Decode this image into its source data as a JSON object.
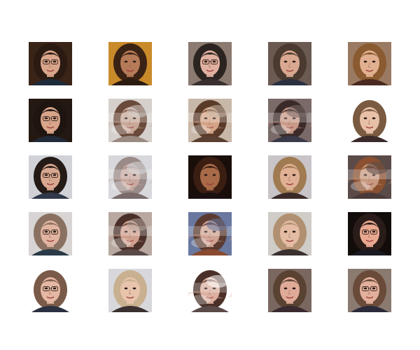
{
  "figure": {
    "background": "#ffffff",
    "rows": 5,
    "cols": 5
  },
  "tiles": [
    {
      "bg": "#3a2418",
      "hair": "#2a1a12",
      "skin": "#d9a58a",
      "glasses": true,
      "shirt": "#1d2b3a",
      "distorted": false
    },
    {
      "bg": "#c98a2a",
      "hair": "#3a2214",
      "skin": "#b57a58",
      "glasses": false,
      "shirt": "#2a1a10",
      "distorted": false
    },
    {
      "bg": "#8a7a70",
      "hair": "#2b2420",
      "skin": "#e0b0a0",
      "glasses": true,
      "shirt": "#3a3030",
      "distorted": false
    },
    {
      "bg": "#6a5a52",
      "hair": "#4a3a30",
      "skin": "#d8a890",
      "glasses": false,
      "shirt": "#2a3040",
      "distorted": false
    },
    {
      "bg": "#9a7a62",
      "hair": "#8a5a30",
      "skin": "#e0b090",
      "glasses": false,
      "shirt": "#4a2a20",
      "distorted": false
    },
    {
      "bg": "#241812",
      "hair": "#1e1410",
      "skin": "#d8a48a",
      "glasses": true,
      "shirt": "#202a38",
      "distorted": false
    },
    {
      "bg": "#d6d0cc",
      "hair": "#6a4a3a",
      "skin": "#c9a898",
      "glasses": false,
      "shirt": "#9a8a80",
      "distorted": true
    },
    {
      "bg": "#c8b8a8",
      "hair": "#5a3a28",
      "skin": "#d4a488",
      "glasses": false,
      "shirt": "#5a4030",
      "distorted": true
    },
    {
      "bg": "#7a6a68",
      "hair": "#3a2a28",
      "skin": "#c89a88",
      "glasses": false,
      "shirt": "#3a3a48",
      "distorted": true
    },
    {
      "bg": "#ffffff",
      "hair": "#7a5a40",
      "skin": "#e8c0a8",
      "glasses": false,
      "shirt": "#3a2a2a",
      "distorted": false
    },
    {
      "bg": "#d0d2d8",
      "hair": "#241a16",
      "skin": "#d8a890",
      "glasses": true,
      "shirt": "#30384a",
      "distorted": false
    },
    {
      "bg": "#d8d8dc",
      "hair": "#9a8a88",
      "skin": "#c8aaa0",
      "glasses": false,
      "shirt": "#7a6a6a",
      "distorted": true
    },
    {
      "bg": "#1a0e0a",
      "hair": "#3a1e12",
      "skin": "#a86a48",
      "glasses": false,
      "shirt": "#1a1010",
      "distorted": false
    },
    {
      "bg": "#c8c4c8",
      "hair": "#a07a50",
      "skin": "#e0b094",
      "glasses": false,
      "shirt": "#3a2a28",
      "distorted": false
    },
    {
      "bg": "#5a4a48",
      "hair": "#8a5030",
      "skin": "#c89a80",
      "glasses": false,
      "shirt": "#4a3a3a",
      "distorted": true
    },
    {
      "bg": "#d8d4d4",
      "hair": "#8a7060",
      "skin": "#e0b4a0",
      "glasses": true,
      "shirt": "#2a3a48",
      "distorted": false
    },
    {
      "bg": "#b8a8a0",
      "hair": "#4a3028",
      "skin": "#d0a090",
      "glasses": false,
      "shirt": "#5a4a48",
      "distorted": true
    },
    {
      "bg": "#6a78a0",
      "hair": "#5a3a30",
      "skin": "#d0a494",
      "glasses": false,
      "shirt": "#8a4a30",
      "distorted": true
    },
    {
      "bg": "#d0ccc8",
      "hair": "#b09070",
      "skin": "#e4bca4",
      "glasses": false,
      "shirt": "#3a3030",
      "distorted": false
    },
    {
      "bg": "#120c0a",
      "hair": "#2a1c18",
      "skin": "#e8a890",
      "glasses": true,
      "shirt": "#1a1a22",
      "distorted": false
    },
    {
      "bg": "#ffffff",
      "hair": "#7a5a48",
      "skin": "#e4b8a4",
      "glasses": true,
      "shirt": "#2a3040",
      "distorted": false
    },
    {
      "bg": "#d8d8dc",
      "hair": "#c8b090",
      "skin": "#e8c4ac",
      "glasses": false,
      "shirt": "#3a3030",
      "distorted": false
    },
    {
      "bg": "#ffffff",
      "hair": "#4a3028",
      "skin": "#dcb0a0",
      "glasses": false,
      "shirt": "#5a4a48",
      "distorted": true
    },
    {
      "bg": "#7a6860",
      "hair": "#5a4232",
      "skin": "#e0aa98",
      "glasses": false,
      "shirt": "#3a2a30",
      "distorted": false
    },
    {
      "bg": "#8a7a70",
      "hair": "#6a4a38",
      "skin": "#e2b09c",
      "glasses": true,
      "shirt": "#2a2a3a",
      "distorted": false
    }
  ]
}
